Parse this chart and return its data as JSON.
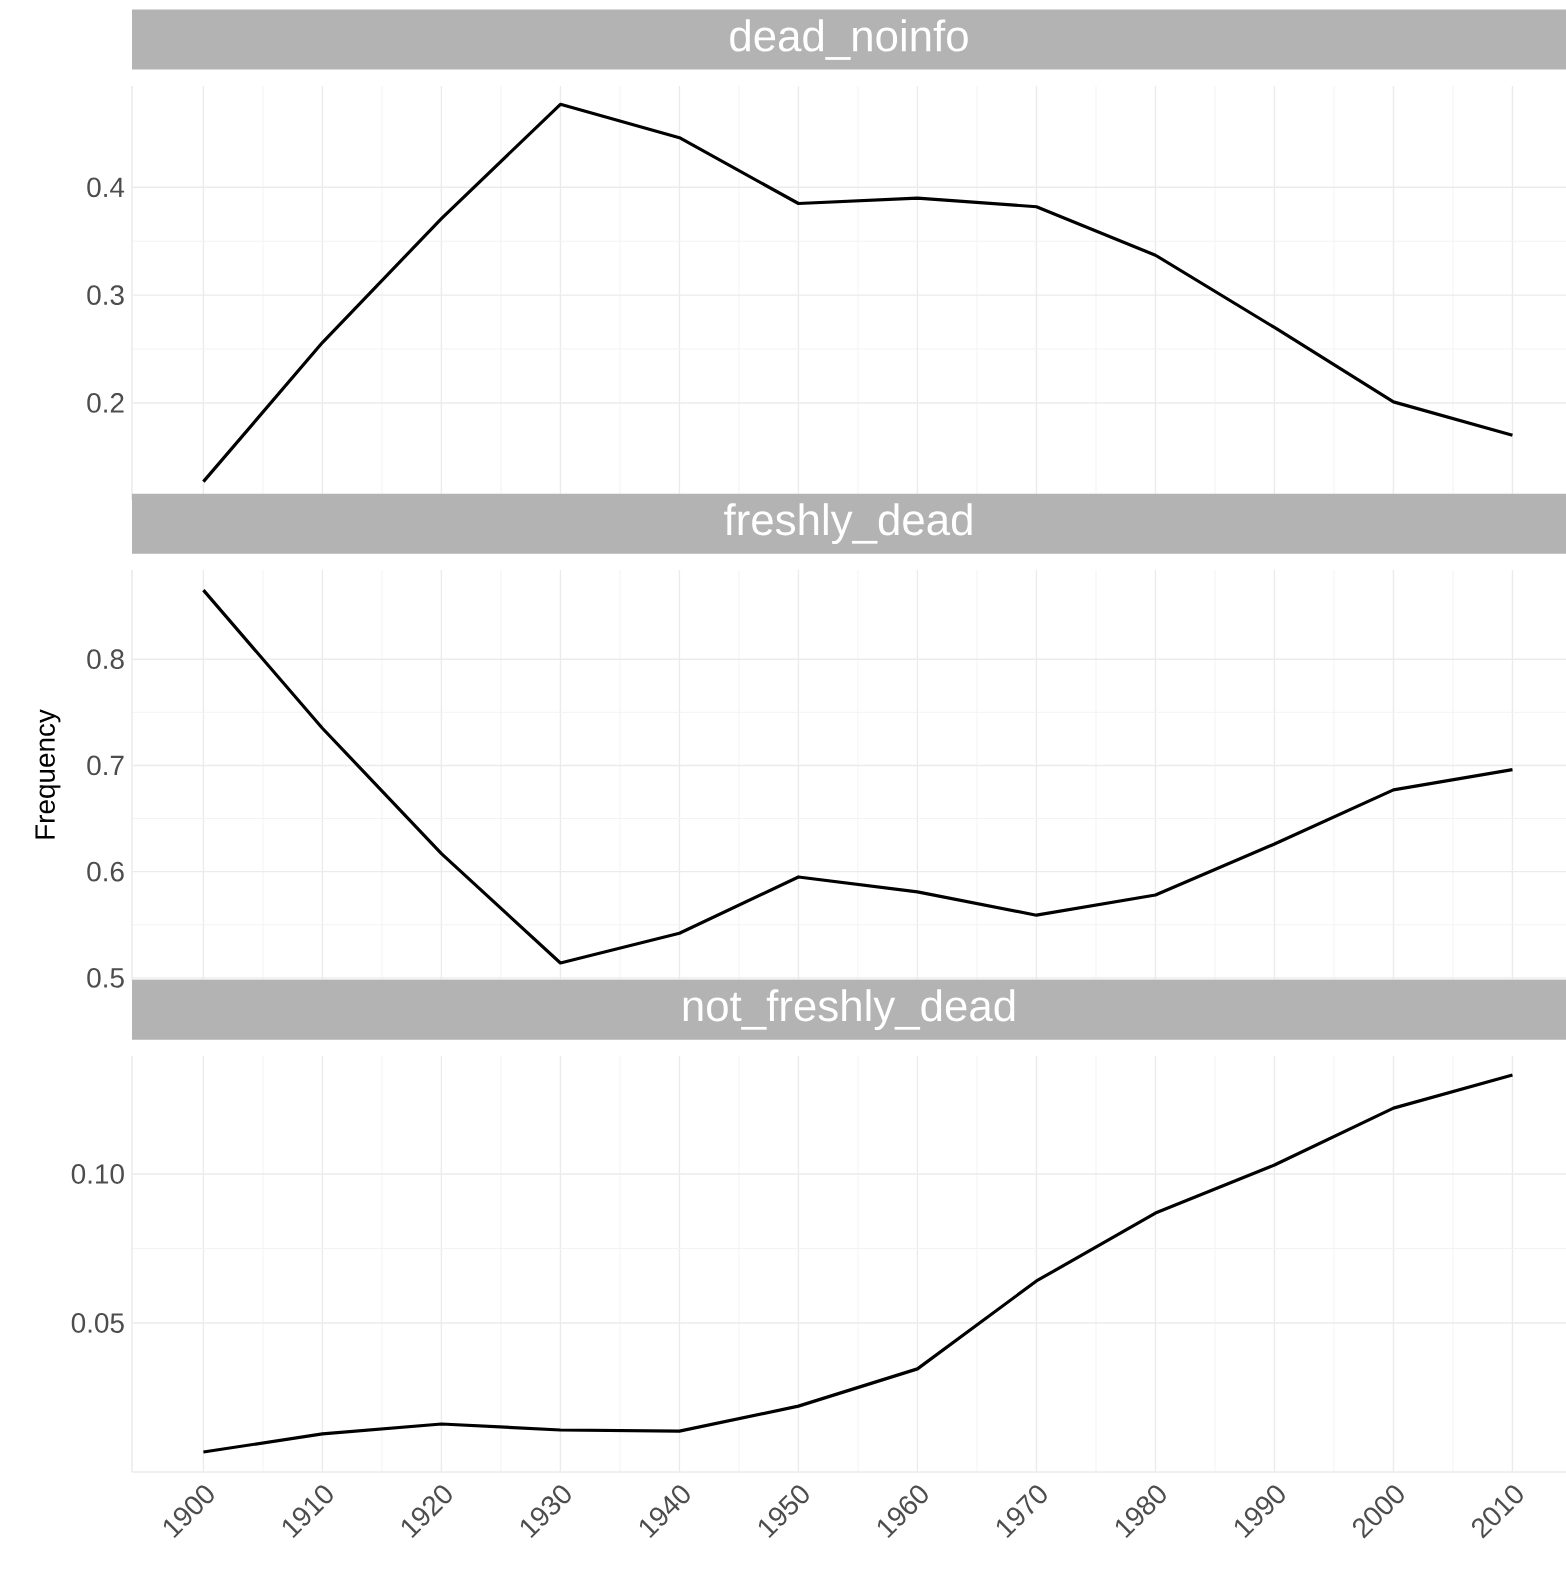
{
  "chart_data": [
    {
      "type": "line",
      "title": "dead_noinfo",
      "x": [
        1900,
        1910,
        1920,
        1930,
        1940,
        1950,
        1960,
        1970,
        1980,
        1990,
        2000,
        2010
      ],
      "series": [
        {
          "color": "#000000",
          "values": [
            0.127,
            0.256,
            0.371,
            0.477,
            0.446,
            0.385,
            0.39,
            0.382,
            0.337,
            0.27,
            0.201,
            0.17
          ]
        }
      ],
      "xlim": [
        1894,
        2014.5
      ],
      "ylim": [
        0.11,
        0.494
      ],
      "xticks": [
        1900,
        1910,
        1920,
        1930,
        1940,
        1950,
        1960,
        1970,
        1980,
        1990,
        2000,
        2010
      ],
      "yticks": [
        0.2,
        0.3,
        0.4
      ],
      "grid": true,
      "tick_labels": "y",
      "marker": "none",
      "line_style": "solid"
    },
    {
      "type": "line",
      "title": "freshly_dead",
      "ylabel": "Frequency",
      "x": [
        1900,
        1910,
        1920,
        1930,
        1940,
        1950,
        1960,
        1970,
        1980,
        1990,
        2000,
        2010
      ],
      "series": [
        {
          "color": "#000000",
          "values": [
            0.865,
            0.735,
            0.617,
            0.514,
            0.542,
            0.595,
            0.581,
            0.559,
            0.578,
            0.626,
            0.677,
            0.696
          ]
        }
      ],
      "xlim": [
        1894,
        2014.5
      ],
      "ylim": [
        0.498,
        0.884
      ],
      "xticks": [
        1900,
        1910,
        1920,
        1930,
        1940,
        1950,
        1960,
        1970,
        1980,
        1990,
        2000,
        2010
      ],
      "yticks": [
        0.5,
        0.6,
        0.7,
        0.8
      ],
      "grid": true,
      "tick_labels": "y",
      "marker": "none",
      "line_style": "solid"
    },
    {
      "type": "line",
      "title": "not_freshly_dead",
      "x": [
        1900,
        1910,
        1920,
        1930,
        1940,
        1950,
        1960,
        1970,
        1980,
        1990,
        2000,
        2010
      ],
      "series": [
        {
          "color": "#000000",
          "values": [
            0.0067,
            0.0128,
            0.0161,
            0.0141,
            0.0137,
            0.0221,
            0.0346,
            0.0641,
            0.0869,
            0.103,
            0.1221,
            0.1332
          ]
        }
      ],
      "xlim": [
        1894,
        2014.5
      ],
      "ylim": [
        0.0,
        0.1396
      ],
      "xticks": [
        1900,
        1910,
        1920,
        1930,
        1940,
        1950,
        1960,
        1970,
        1980,
        1990,
        2000,
        2010
      ],
      "yticks": [
        {
          "value": 0.05,
          "label": "0.05"
        },
        {
          "value": 0.1,
          "label": "0.10"
        }
      ],
      "grid": true,
      "marker": "none",
      "line_style": "solid"
    }
  ]
}
